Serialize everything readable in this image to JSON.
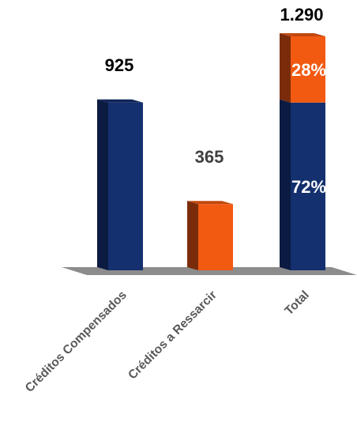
{
  "chart_data": {
    "type": "bar",
    "categories": [
      "Créditos Compensados",
      "Créditos a Ressarcir",
      "Total"
    ],
    "values": [
      925,
      365,
      1290
    ],
    "value_labels": [
      "925",
      "365",
      "1.290"
    ],
    "stack": {
      "category": "Total",
      "segments": [
        {
          "value": 925,
          "label": "72%",
          "color": "#14306e"
        },
        {
          "value": 365,
          "label": "28%",
          "color": "#f25a12"
        }
      ]
    },
    "colors": {
      "Créditos Compensados": "#14306e",
      "Créditos a Ressarcir": "#f25a12",
      "navy_side": "#0b1b42",
      "orange_side": "#7a2c0a",
      "floor": "#8c8c8c"
    },
    "ylim": [
      0,
      1290
    ],
    "grid": false,
    "legend": "none",
    "title": "",
    "xlabel": "",
    "ylabel": ""
  }
}
